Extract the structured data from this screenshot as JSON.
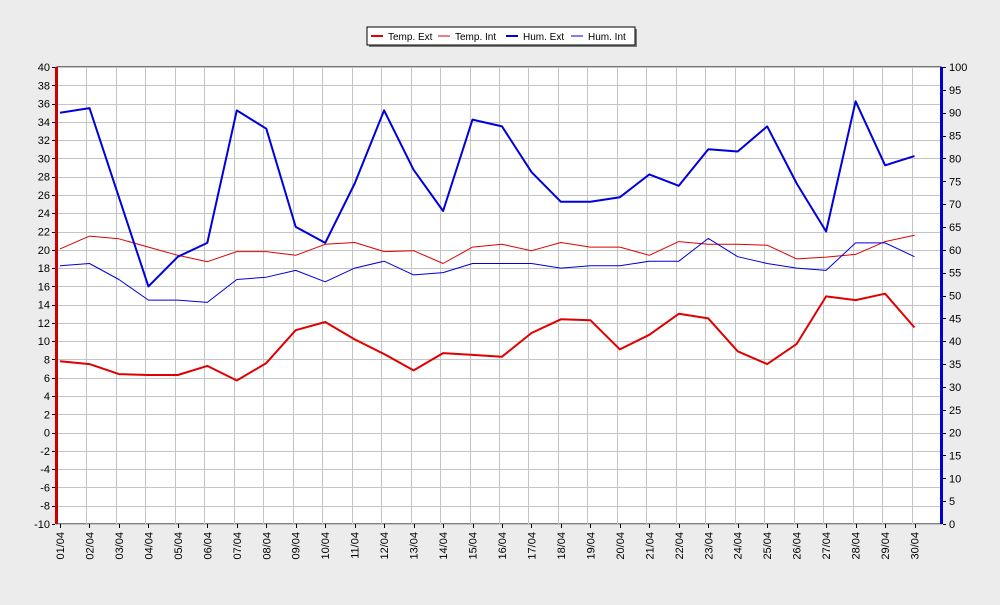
{
  "chart_data": {
    "type": "line",
    "title": "",
    "xlabel": "",
    "ylabel_left": "",
    "ylabel_right": "",
    "grid": true,
    "legend_position": "top-center",
    "ylim_left": [
      -10,
      40
    ],
    "ylim_right": [
      0,
      100
    ],
    "yticks_left": [
      40,
      38,
      36,
      34,
      32,
      30,
      28,
      26,
      24,
      22,
      20,
      18,
      16,
      14,
      12,
      10,
      8,
      6,
      4,
      2,
      0,
      -2,
      -4,
      -6,
      -8,
      -10
    ],
    "yticks_right": [
      100,
      95,
      90,
      85,
      80,
      75,
      70,
      65,
      60,
      55,
      50,
      45,
      40,
      35,
      30,
      25,
      20,
      15,
      10,
      5,
      0
    ],
    "categories": [
      "01/04",
      "02/04",
      "03/04",
      "04/04",
      "05/04",
      "06/04",
      "07/04",
      "08/04",
      "09/04",
      "10/04",
      "11/04",
      "12/04",
      "13/04",
      "14/04",
      "15/04",
      "16/04",
      "17/04",
      "18/04",
      "19/04",
      "20/04",
      "21/04",
      "22/04",
      "23/04",
      "24/04",
      "25/04",
      "26/04",
      "27/04",
      "28/04",
      "29/04",
      "30/04"
    ],
    "series": [
      {
        "name": "Temp. Ext",
        "axis": "left",
        "color": "#e00000",
        "width": 2,
        "values": [
          7.8,
          7.5,
          6.4,
          6.3,
          6.3,
          7.3,
          5.7,
          7.6,
          11.2,
          12.1,
          10.2,
          8.6,
          6.8,
          8.7,
          8.5,
          8.3,
          10.9,
          12.4,
          12.3,
          9.1,
          10.7,
          13.0,
          12.5,
          8.9,
          7.5,
          9.7,
          14.9,
          14.5,
          15.2,
          11.5
        ]
      },
      {
        "name": "Temp. Int",
        "axis": "left",
        "color": "#e00000",
        "width": 1,
        "values": [
          20.1,
          21.5,
          21.2,
          20.3,
          19.4,
          18.7,
          19.8,
          19.8,
          19.4,
          20.6,
          20.8,
          19.8,
          19.9,
          18.5,
          20.3,
          20.6,
          19.9,
          20.8,
          20.3,
          20.3,
          19.4,
          20.9,
          20.6,
          20.6,
          20.5,
          19.0,
          19.2,
          19.5,
          20.9,
          21.6
        ]
      },
      {
        "name": "Hum. Ext",
        "axis": "right",
        "color": "#0000dd",
        "width": 2,
        "values": [
          90.0,
          91.0,
          71.5,
          52.0,
          58.5,
          61.5,
          90.5,
          86.5,
          65.0,
          61.5,
          74.5,
          90.5,
          77.5,
          68.5,
          88.5,
          87.0,
          77.0,
          70.5,
          70.5,
          71.5,
          76.5,
          74.0,
          82.0,
          81.5,
          87.0,
          74.5,
          64.0,
          92.5,
          78.5,
          80.5
        ]
      },
      {
        "name": "Hum. Int",
        "axis": "right",
        "color": "#0000dd",
        "width": 1,
        "values": [
          56.5,
          57.0,
          53.5,
          49.0,
          49.0,
          48.5,
          53.5,
          54.0,
          55.5,
          53.0,
          56.0,
          57.5,
          54.5,
          55.0,
          57.0,
          57.0,
          57.0,
          56.0,
          56.5,
          56.5,
          57.5,
          57.5,
          62.5,
          58.5,
          57.0,
          56.0,
          55.5,
          61.5,
          61.5,
          58.5
        ]
      }
    ]
  }
}
